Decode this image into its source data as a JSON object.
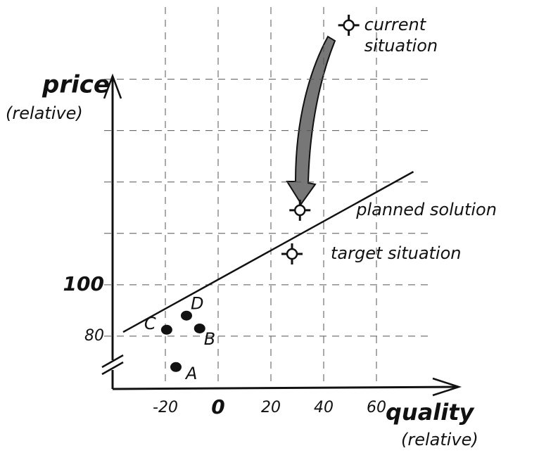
{
  "chart_data": {
    "type": "scatter",
    "y_title": "price",
    "y_subtitle": "(relative)",
    "x_title": "quality",
    "x_subtitle": "(relative)",
    "xlim": [
      -40,
      90
    ],
    "ylim": [
      60,
      210
    ],
    "xticks": [
      -20,
      0,
      20,
      40,
      60
    ],
    "yticks": [
      80,
      100
    ],
    "y_gridlines": [
      80,
      100,
      120,
      140,
      160,
      180
    ],
    "grid": true,
    "points": [
      {
        "label": "A",
        "x": -16,
        "y": 68
      },
      {
        "label": "B",
        "x": -7,
        "y": 83
      },
      {
        "label": "C",
        "x": -19.5,
        "y": 82.5
      },
      {
        "label": "D",
        "x": -12,
        "y": 88
      }
    ],
    "markers": [
      {
        "label": [
          "current",
          "situation"
        ],
        "x": 49.5,
        "y": 201
      },
      {
        "label": [
          "planned solution"
        ],
        "x": 31,
        "y": 129
      },
      {
        "label": [
          "target situation"
        ],
        "x": 28,
        "y": 112
      }
    ],
    "line": {
      "x": [
        -36,
        74
      ],
      "y": [
        81.6,
        144
      ]
    },
    "color": "#111111"
  }
}
